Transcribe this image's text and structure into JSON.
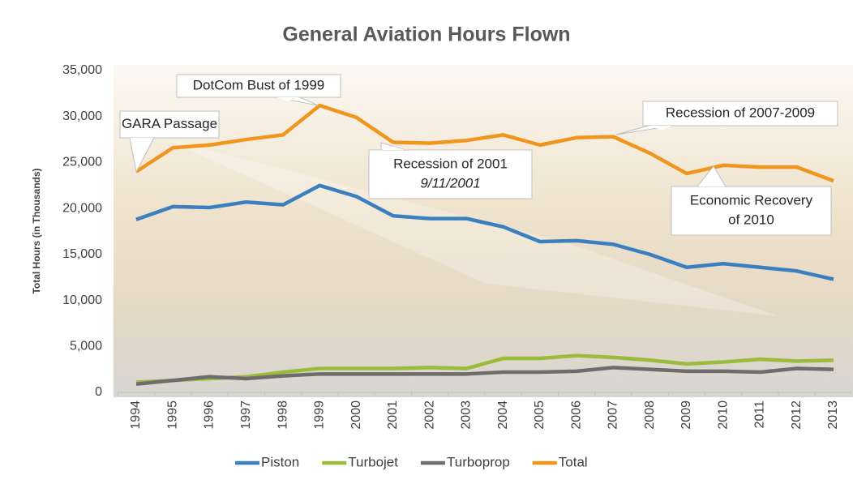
{
  "chart_data": {
    "type": "line",
    "title": "General Aviation Hours Flown",
    "y_label": "Total Hours (in Thousands)",
    "categories": [
      "1994",
      "1995",
      "1996",
      "1997",
      "1998",
      "1999",
      "2000",
      "2001",
      "2002",
      "2003",
      "2004",
      "2005",
      "2006",
      "2007",
      "2008",
      "2009",
      "2010",
      "2011",
      "2012",
      "2013"
    ],
    "series": [
      {
        "name": "Piston",
        "color": "#3a7fbf",
        "values": [
          18800,
          20200,
          20100,
          20700,
          20400,
          22500,
          21300,
          19200,
          18900,
          18900,
          18000,
          16400,
          16500,
          16100,
          15000,
          13600,
          14000,
          13600,
          13200,
          12300
        ]
      },
      {
        "name": "Turbojet",
        "color": "#9bbb3b",
        "values": [
          1100,
          1300,
          1500,
          1700,
          2200,
          2600,
          2600,
          2600,
          2700,
          2600,
          3700,
          3700,
          4000,
          3800,
          3500,
          3100,
          3300,
          3600,
          3400,
          3500
        ]
      },
      {
        "name": "Turboprop",
        "color": "#6d6d6d",
        "values": [
          900,
          1300,
          1700,
          1500,
          1800,
          2000,
          2000,
          2000,
          2000,
          2000,
          2200,
          2200,
          2300,
          2700,
          2500,
          2300,
          2300,
          2200,
          2600,
          2500
        ]
      },
      {
        "name": "Total",
        "color": "#f0961e",
        "values": [
          24000,
          26600,
          26900,
          27500,
          28000,
          31200,
          29900,
          27200,
          27100,
          27400,
          28000,
          26900,
          27700,
          27800,
          26000,
          23800,
          24700,
          24500,
          24500,
          23000
        ]
      }
    ],
    "ylim": [
      0,
      35000
    ],
    "yticks": [
      0,
      {
        "value": 5000,
        "label": "5,000"
      },
      {
        "value": 10000,
        "label": "10,000"
      },
      {
        "value": 15000,
        "label": "15,000"
      },
      {
        "value": 20000,
        "label": "20,000"
      },
      {
        "value": 25000,
        "label": "25,000"
      },
      {
        "value": 30000,
        "label": "30,000"
      },
      {
        "value": 35000,
        "label": "35,000"
      }
    ],
    "legend": "bottom",
    "annotations": [
      {
        "lines": [
          "GARA Passage"
        ]
      },
      {
        "lines": [
          "DotCom Bust of 1999"
        ]
      },
      {
        "lines": [
          "Recession of 2001",
          "9/11/2001"
        ]
      },
      {
        "lines": [
          "Recession of 2007-2009"
        ]
      },
      {
        "lines": [
          "Economic Recovery",
          "of 2010"
        ]
      }
    ]
  }
}
